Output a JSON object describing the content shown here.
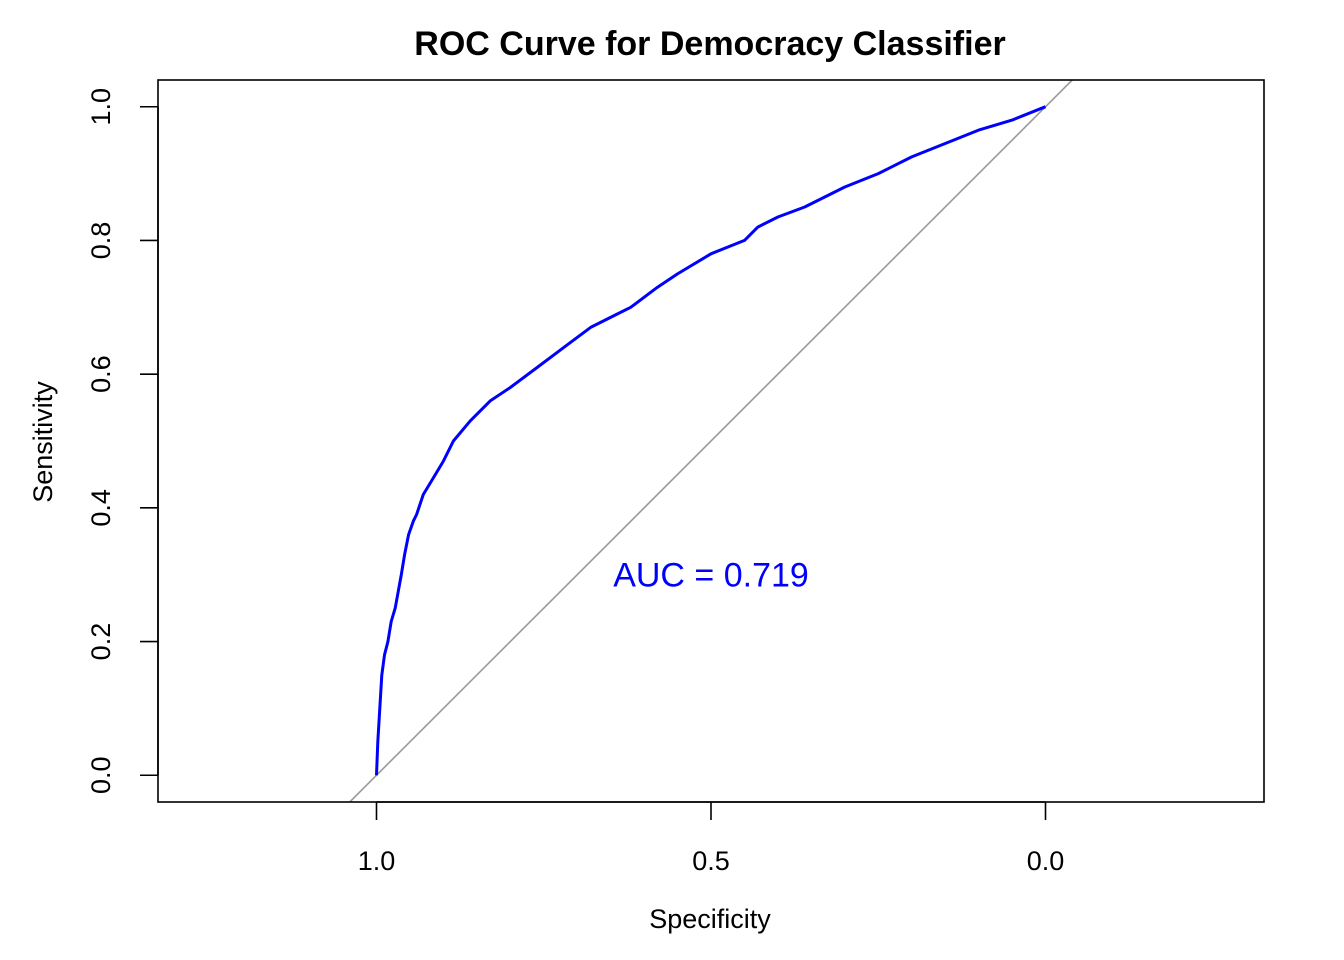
{
  "chart_data": {
    "type": "line",
    "title": "ROC Curve for Democracy Classifier",
    "xlabel": "Specificity",
    "ylabel": "Sensitivity",
    "x_reversed": true,
    "xlim": [
      1.3266,
      -0.3266
    ],
    "ylim": [
      -0.04,
      1.04
    ],
    "x_ticks": [
      1.0,
      0.5,
      0.0
    ],
    "x_tick_labels": [
      "1.0",
      "0.5",
      "0.0"
    ],
    "y_ticks": [
      0.0,
      0.2,
      0.4,
      0.6,
      0.8,
      1.0
    ],
    "y_tick_labels": [
      "0.0",
      "0.2",
      "0.4",
      "0.6",
      "0.8",
      "1.0"
    ],
    "grid": false,
    "legend": "none",
    "colors": {
      "curve": "#0000ff",
      "diagonal": "#999999",
      "annotation": "#0000ff"
    },
    "annotation": {
      "text": "AUC = 0.719",
      "x": 0.5,
      "y": 0.3
    },
    "reference_line": {
      "name": "chance diagonal",
      "slope": 1,
      "specificity_plus_sensitivity": 1
    },
    "series": [
      {
        "specificity": [
          1.0,
          0.998,
          0.995,
          0.992,
          0.988,
          0.983,
          0.978,
          0.972,
          0.963,
          0.958,
          0.952,
          0.945,
          0.94,
          0.93,
          0.918,
          0.9,
          0.885,
          0.86,
          0.83,
          0.8,
          0.76,
          0.72,
          0.68,
          0.64,
          0.62,
          0.58,
          0.55,
          0.5,
          0.45,
          0.43,
          0.4,
          0.36,
          0.3,
          0.25,
          0.2,
          0.15,
          0.1,
          0.05,
          0.0
        ],
        "sensitivity": [
          0.0,
          0.05,
          0.1,
          0.15,
          0.18,
          0.2,
          0.23,
          0.25,
          0.3,
          0.33,
          0.36,
          0.38,
          0.39,
          0.42,
          0.44,
          0.47,
          0.5,
          0.53,
          0.56,
          0.58,
          0.61,
          0.64,
          0.67,
          0.69,
          0.7,
          0.73,
          0.75,
          0.78,
          0.8,
          0.82,
          0.835,
          0.85,
          0.88,
          0.9,
          0.925,
          0.945,
          0.965,
          0.98,
          1.0
        ]
      }
    ]
  }
}
